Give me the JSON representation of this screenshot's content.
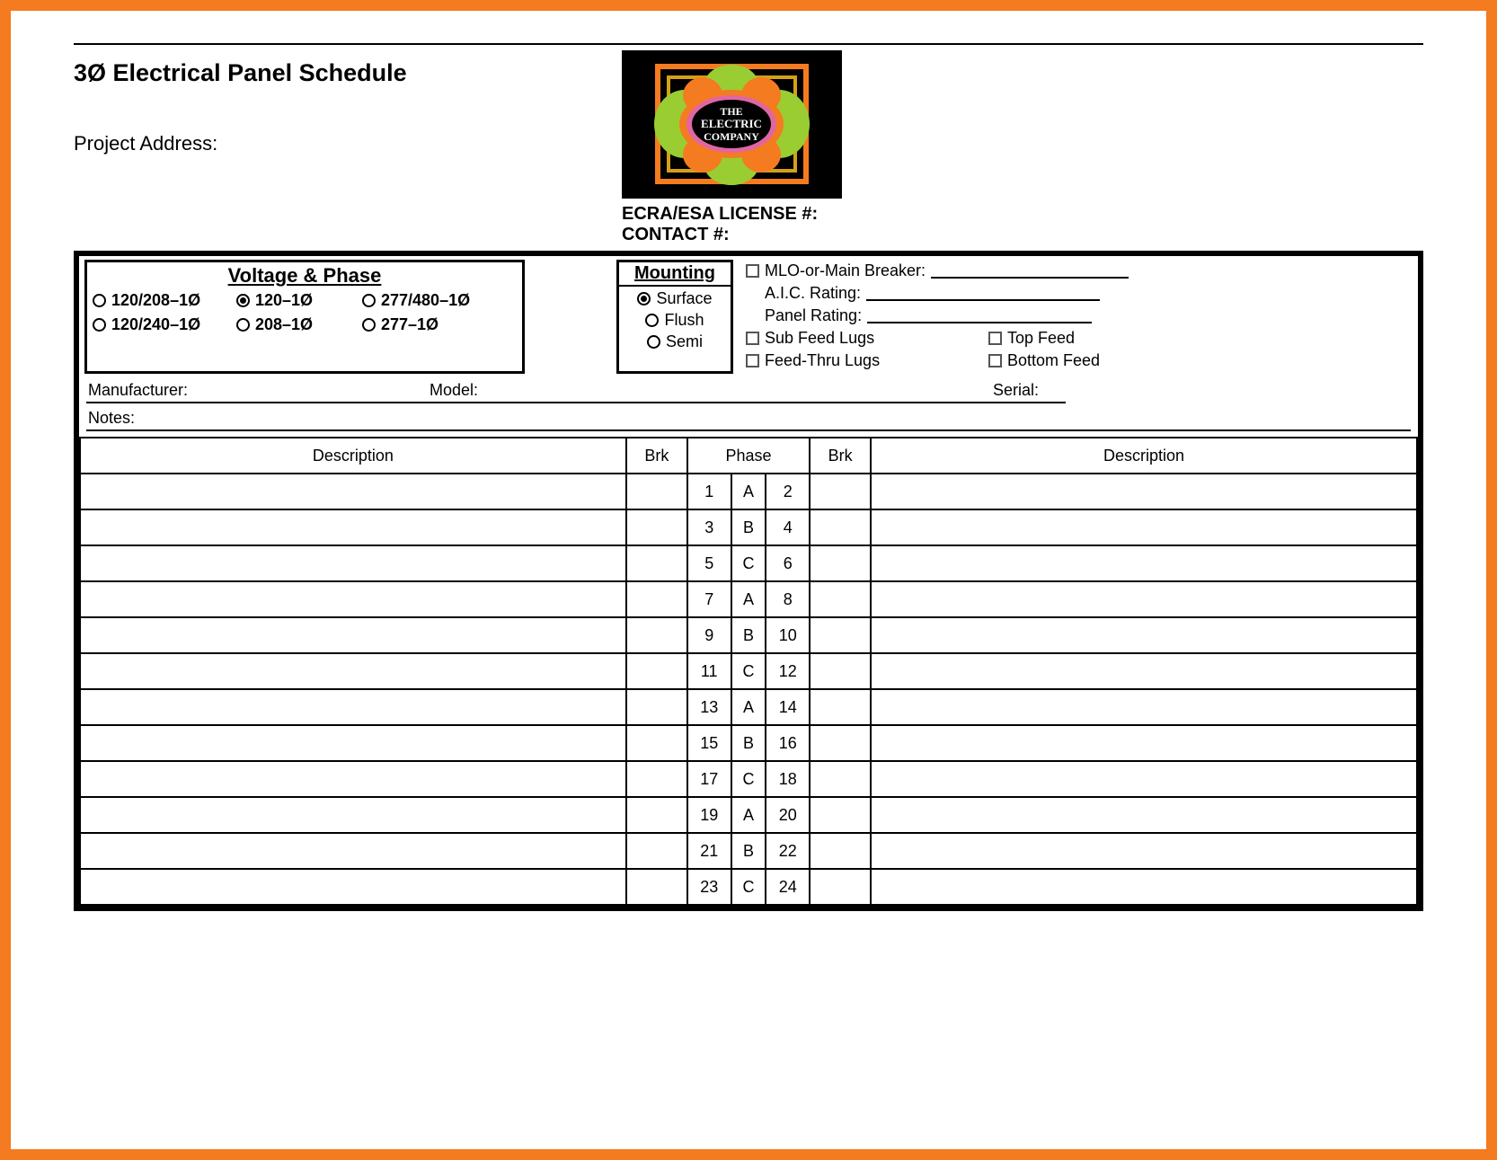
{
  "title": "3Ø Electrical Panel Schedule",
  "project_address_label": "Project Address:",
  "logo": {
    "brand_line1": "THE",
    "brand_line2": "ELECTRIC",
    "brand_line3": "COMPANY",
    "bg_color": "#000000",
    "accent_orange": "#f47b20",
    "accent_green": "#9acd32",
    "accent_pink": "#e066a3",
    "accent_gold": "#d4a017"
  },
  "license_label": "ECRA/ESA LICENSE #:",
  "contact_label": "CONTACT #:",
  "voltage_phase": {
    "heading": "Voltage & Phase",
    "options": [
      {
        "label": "120/208–1Ø",
        "selected": false
      },
      {
        "label": "120–1Ø",
        "selected": true
      },
      {
        "label": "277/480–1Ø",
        "selected": false
      },
      {
        "label": "120/240–1Ø",
        "selected": false
      },
      {
        "label": "208–1Ø",
        "selected": false
      },
      {
        "label": "277–1Ø",
        "selected": false
      }
    ]
  },
  "mounting": {
    "heading": "Mounting",
    "options": [
      {
        "label": "Surface",
        "selected": true
      },
      {
        "label": "Flush",
        "selected": false
      },
      {
        "label": "Semi",
        "selected": false
      }
    ]
  },
  "right_checks": {
    "mlo_label": "MLO-or-Main Breaker:",
    "aic_label": "A.I.C. Rating:",
    "panel_rating_label": "Panel Rating:",
    "sub_feed": "Sub Feed Lugs",
    "top_feed": "Top Feed",
    "feed_thru": "Feed-Thru Lugs",
    "bottom_feed": "Bottom Feed"
  },
  "info": {
    "manufacturer_label": "Manufacturer:",
    "model_label": "Model:",
    "serial_label": "Serial:",
    "notes_label": "Notes:"
  },
  "table": {
    "headers": {
      "description": "Description",
      "brk": "Brk",
      "phase": "Phase"
    },
    "rows": [
      {
        "l": 1,
        "p": "A",
        "r": 2
      },
      {
        "l": 3,
        "p": "B",
        "r": 4
      },
      {
        "l": 5,
        "p": "C",
        "r": 6
      },
      {
        "l": 7,
        "p": "A",
        "r": 8
      },
      {
        "l": 9,
        "p": "B",
        "r": 10
      },
      {
        "l": 11,
        "p": "C",
        "r": 12
      },
      {
        "l": 13,
        "p": "A",
        "r": 14
      },
      {
        "l": 15,
        "p": "B",
        "r": 16
      },
      {
        "l": 17,
        "p": "C",
        "r": 18
      },
      {
        "l": 19,
        "p": "A",
        "r": 20
      },
      {
        "l": 21,
        "p": "B",
        "r": 22
      },
      {
        "l": 23,
        "p": "C",
        "r": 24
      }
    ]
  },
  "colors": {
    "frame": "#f47b20",
    "rule": "#000000",
    "background": "#ffffff"
  }
}
